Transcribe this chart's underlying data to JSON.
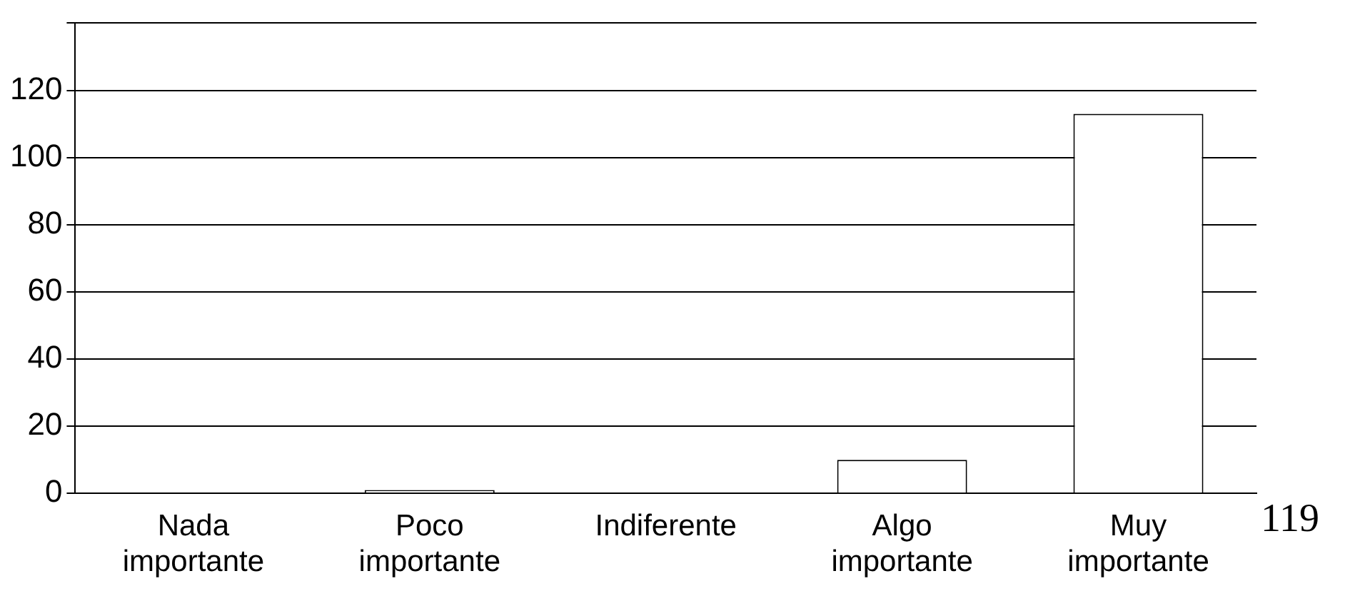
{
  "chart_data": {
    "type": "bar",
    "categories": [
      "Nada\nimportante",
      "Poco\nimportante",
      "Indiferente",
      "Algo\nimportante",
      "Muy\nimportante"
    ],
    "values": [
      0,
      1,
      0,
      10,
      113
    ],
    "color": "#ffffff",
    "ylim": [
      0,
      140
    ],
    "yticks": [
      0,
      20,
      40,
      60,
      80,
      100,
      120,
      {
        "value": 140,
        "label": null
      }
    ],
    "grid": "y",
    "annotations": [
      "119"
    ]
  }
}
